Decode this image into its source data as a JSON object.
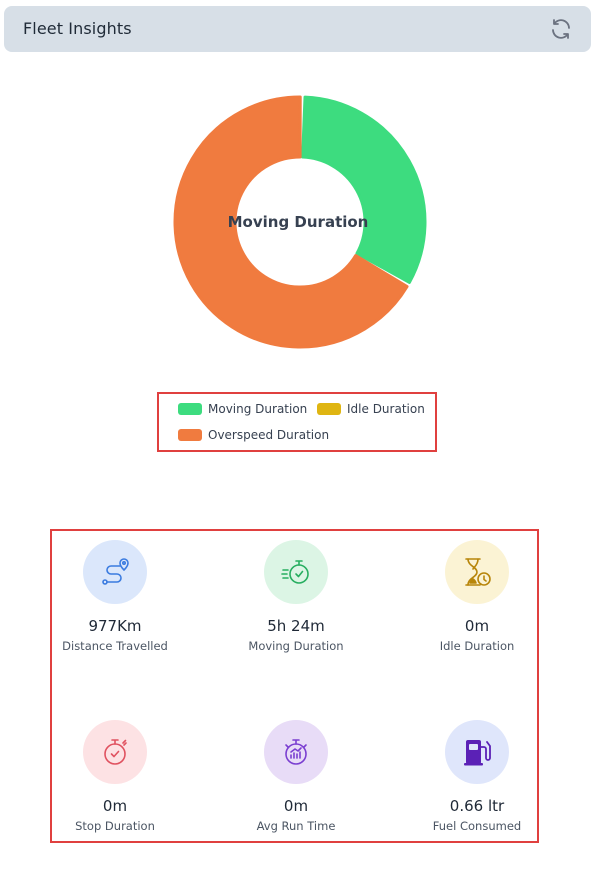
{
  "header": {
    "title": "Fleet Insights"
  },
  "chart_data": {
    "type": "pie",
    "center_label": "Moving Duration",
    "categories": [
      "Moving Duration",
      "Idle Duration",
      "Overspeed Duration"
    ],
    "values": [
      33,
      0,
      67
    ],
    "colors": [
      "#3ddc7f",
      "#dfb512",
      "#f07b3f"
    ],
    "legend": "bottom"
  },
  "stats": [
    {
      "value": "977Km",
      "label": "Distance Travelled",
      "icon": "route-icon",
      "bg": "#dbe7fb",
      "color": "#3a7be0"
    },
    {
      "value": "5h 24m",
      "label": "Moving Duration",
      "icon": "stopwatch-icon",
      "bg": "#dcf5e5",
      "color": "#27ae60"
    },
    {
      "value": "0m",
      "label": "Idle Duration",
      "icon": "hourglass-clock-icon",
      "bg": "#fbf3d4",
      "color": "#b8860b"
    },
    {
      "value": "0m",
      "label": "Stop Duration",
      "icon": "stop-timer-icon",
      "bg": "#fde2e4",
      "color": "#e05260"
    },
    {
      "value": "0m",
      "label": "Avg Run Time",
      "icon": "run-timer-icon",
      "bg": "#e8dcf7",
      "color": "#7b3fd1"
    },
    {
      "value": "0.66 ltr",
      "label": "Fuel Consumed",
      "icon": "fuel-pump-icon",
      "bg": "#dfe6fb",
      "color": "#5b21b6"
    }
  ]
}
